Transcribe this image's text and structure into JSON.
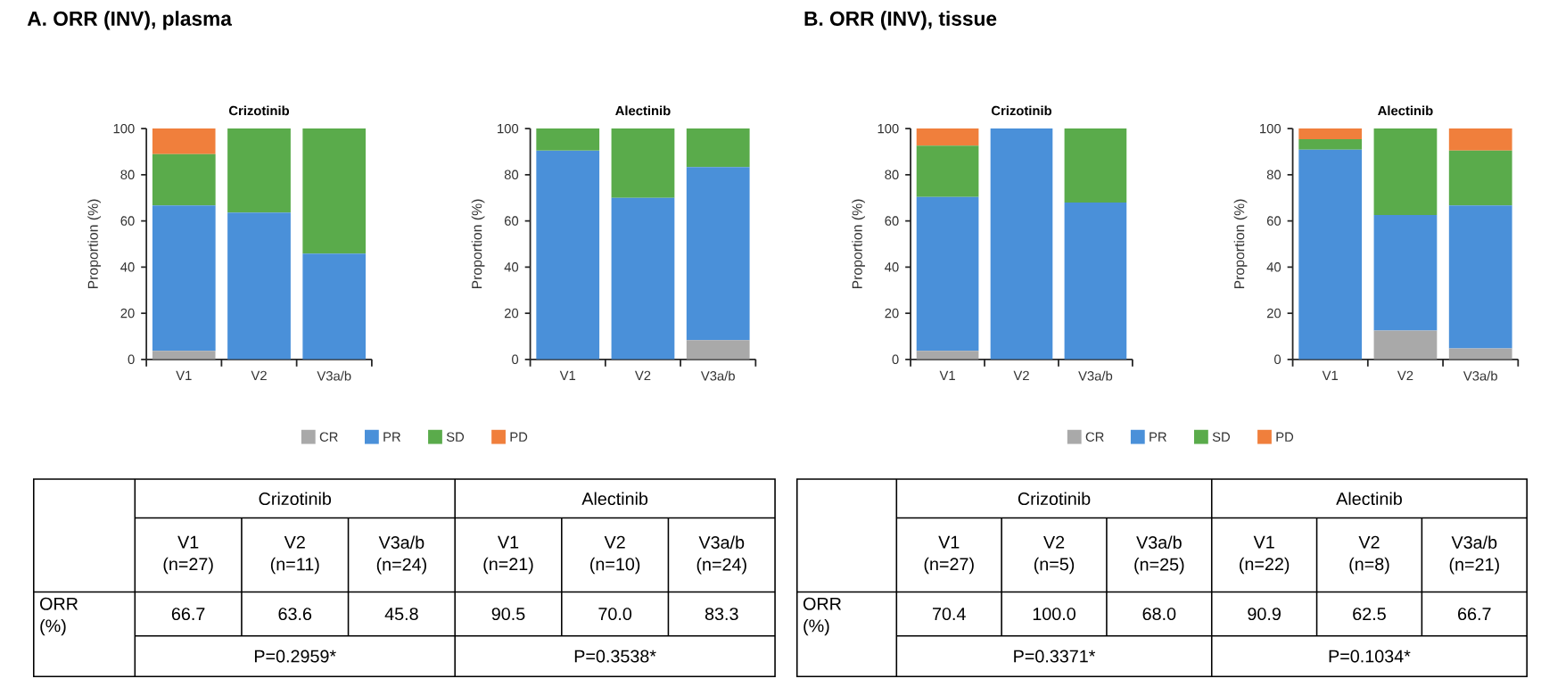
{
  "chart_data": [
    {
      "type": "bar",
      "title": "Crizotinib",
      "ylabel": "Proportion (%)",
      "categories": [
        "V1",
        "V2",
        "V3a/b"
      ],
      "stacked": true,
      "ylim": [
        0,
        100
      ],
      "yticks": [
        0,
        20,
        40,
        60,
        80,
        100
      ],
      "annotations": [
        "A. ORR (INV), plasma"
      ],
      "series": [
        {
          "color": "#a9a9a9",
          "values": [
            3.7,
            0,
            0
          ]
        },
        {
          "color": "#4a90d9",
          "values": [
            63.0,
            63.6,
            45.8
          ]
        },
        {
          "color": "#5aab4b",
          "values": [
            22.2,
            36.4,
            54.2
          ]
        },
        {
          "color": "#f07f3c",
          "values": [
            11.1,
            0,
            0
          ]
        }
      ]
    },
    {
      "type": "bar",
      "title": "Alectinib",
      "ylabel": "Proportion (%)",
      "categories": [
        "V1",
        "V2",
        "V3a/b"
      ],
      "stacked": true,
      "ylim": [
        0,
        100
      ],
      "yticks": [
        0,
        20,
        40,
        60,
        80,
        100
      ],
      "legend": "bottom",
      "series": [
        {
          "name": "CR",
          "color": "#a9a9a9",
          "values": [
            0,
            0,
            8.3
          ]
        },
        {
          "name": "PR",
          "color": "#4a90d9",
          "values": [
            90.5,
            70.0,
            75.0
          ]
        },
        {
          "name": "SD",
          "color": "#5aab4b",
          "values": [
            9.5,
            30.0,
            16.7
          ]
        },
        {
          "name": "PD",
          "color": "#f07f3c",
          "values": [
            0,
            0,
            0
          ]
        }
      ]
    },
    {
      "type": "bar",
      "title": "Crizotinib",
      "ylabel": "Proportion (%)",
      "categories": [
        "V1",
        "V2",
        "V3a/b"
      ],
      "stacked": true,
      "ylim": [
        0,
        100
      ],
      "yticks": [
        0,
        20,
        40,
        60,
        80,
        100
      ],
      "annotations": [
        "B. ORR (INV), tissue"
      ],
      "series": [
        {
          "color": "#a9a9a9",
          "values": [
            3.7,
            0,
            0
          ]
        },
        {
          "color": "#4a90d9",
          "values": [
            66.7,
            100.0,
            68.0
          ]
        },
        {
          "color": "#5aab4b",
          "values": [
            22.2,
            0,
            32.0
          ]
        },
        {
          "color": "#f07f3c",
          "values": [
            7.4,
            0,
            0
          ]
        }
      ]
    },
    {
      "type": "bar",
      "title": "Alectinib",
      "ylabel": "Proportion (%)",
      "categories": [
        "V1",
        "V2",
        "V3a/b"
      ],
      "stacked": true,
      "ylim": [
        0,
        100
      ],
      "yticks": [
        0,
        20,
        40,
        60,
        80,
        100
      ],
      "legend": "bottom",
      "series": [
        {
          "name": "CR",
          "color": "#a9a9a9",
          "values": [
            0,
            12.5,
            4.8
          ]
        },
        {
          "name": "PR",
          "color": "#4a90d9",
          "values": [
            90.9,
            50.0,
            61.9
          ]
        },
        {
          "name": "SD",
          "color": "#5aab4b",
          "values": [
            4.5,
            37.5,
            23.8
          ]
        },
        {
          "name": "PD",
          "color": "#f07f3c",
          "values": [
            4.6,
            0,
            9.5
          ]
        }
      ]
    },
    {
      "type": "other",
      "annotations": [
        "Crizotinib",
        "Alectinib",
        "V1 (n=27)",
        "V2 (n=11)",
        "V3a/b (n=24)",
        "V1 (n=21)",
        "V2 (n=10)",
        "V3a/b (n=24)",
        "ORR (%)",
        "66.7",
        "63.6",
        "45.8",
        "90.5",
        "70.0",
        "83.3",
        "P=0.2959*",
        "P=0.3538*"
      ]
    },
    {
      "type": "other",
      "annotations": [
        "Crizotinib",
        "Alectinib",
        "V1 (n=27)",
        "V2 (n=5)",
        "V3a/b (n=25)",
        "V1 (n=22)",
        "V2 (n=8)",
        "V3a/b (n=21)",
        "ORR (%)",
        "70.4",
        "100.0",
        "68.0",
        "90.9",
        "62.5",
        "66.7",
        "P=0.3371*",
        "P=0.1034*"
      ]
    }
  ]
}
